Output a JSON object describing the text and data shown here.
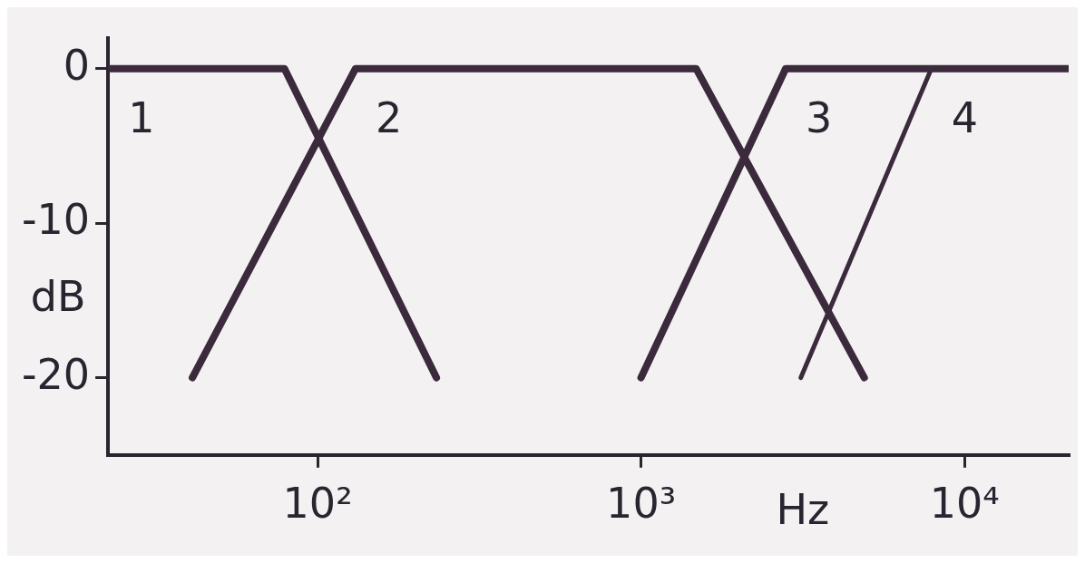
{
  "chart_data": {
    "type": "line",
    "xlabel": "Hz",
    "ylabel": "dB",
    "log": "x",
    "grid": false,
    "legend": false,
    "marker": "none",
    "line_style": "solid",
    "xlim": [
      22.5,
      21000
    ],
    "xticks": [
      {
        "value": 100,
        "label": "10²"
      },
      {
        "value": 1000,
        "label": "10³"
      },
      {
        "value": 10000,
        "label": "10⁴"
      }
    ],
    "ylim": [
      -25,
      2
    ],
    "yticks": [
      0,
      -10,
      -20
    ],
    "series": [
      {
        "name": "1",
        "color": "#3b2a3c",
        "x": [
          22.5,
          79,
          233
        ],
        "values": [
          0,
          0,
          -20
        ]
      },
      {
        "name": "2",
        "color": "#3b2a3c",
        "x": [
          41,
          131,
          1480,
          4900
        ],
        "values": [
          -20,
          0,
          0,
          -20
        ]
      },
      {
        "name": "3",
        "color": "#3b2a3c",
        "x": [
          1000,
          2800,
          21000
        ],
        "values": [
          -20,
          0,
          0
        ]
      },
      {
        "name": "4",
        "color": "#3b2a3c",
        "x": [
          3120,
          7900,
          21000
        ],
        "values": [
          -20,
          0,
          0
        ]
      }
    ]
  }
}
